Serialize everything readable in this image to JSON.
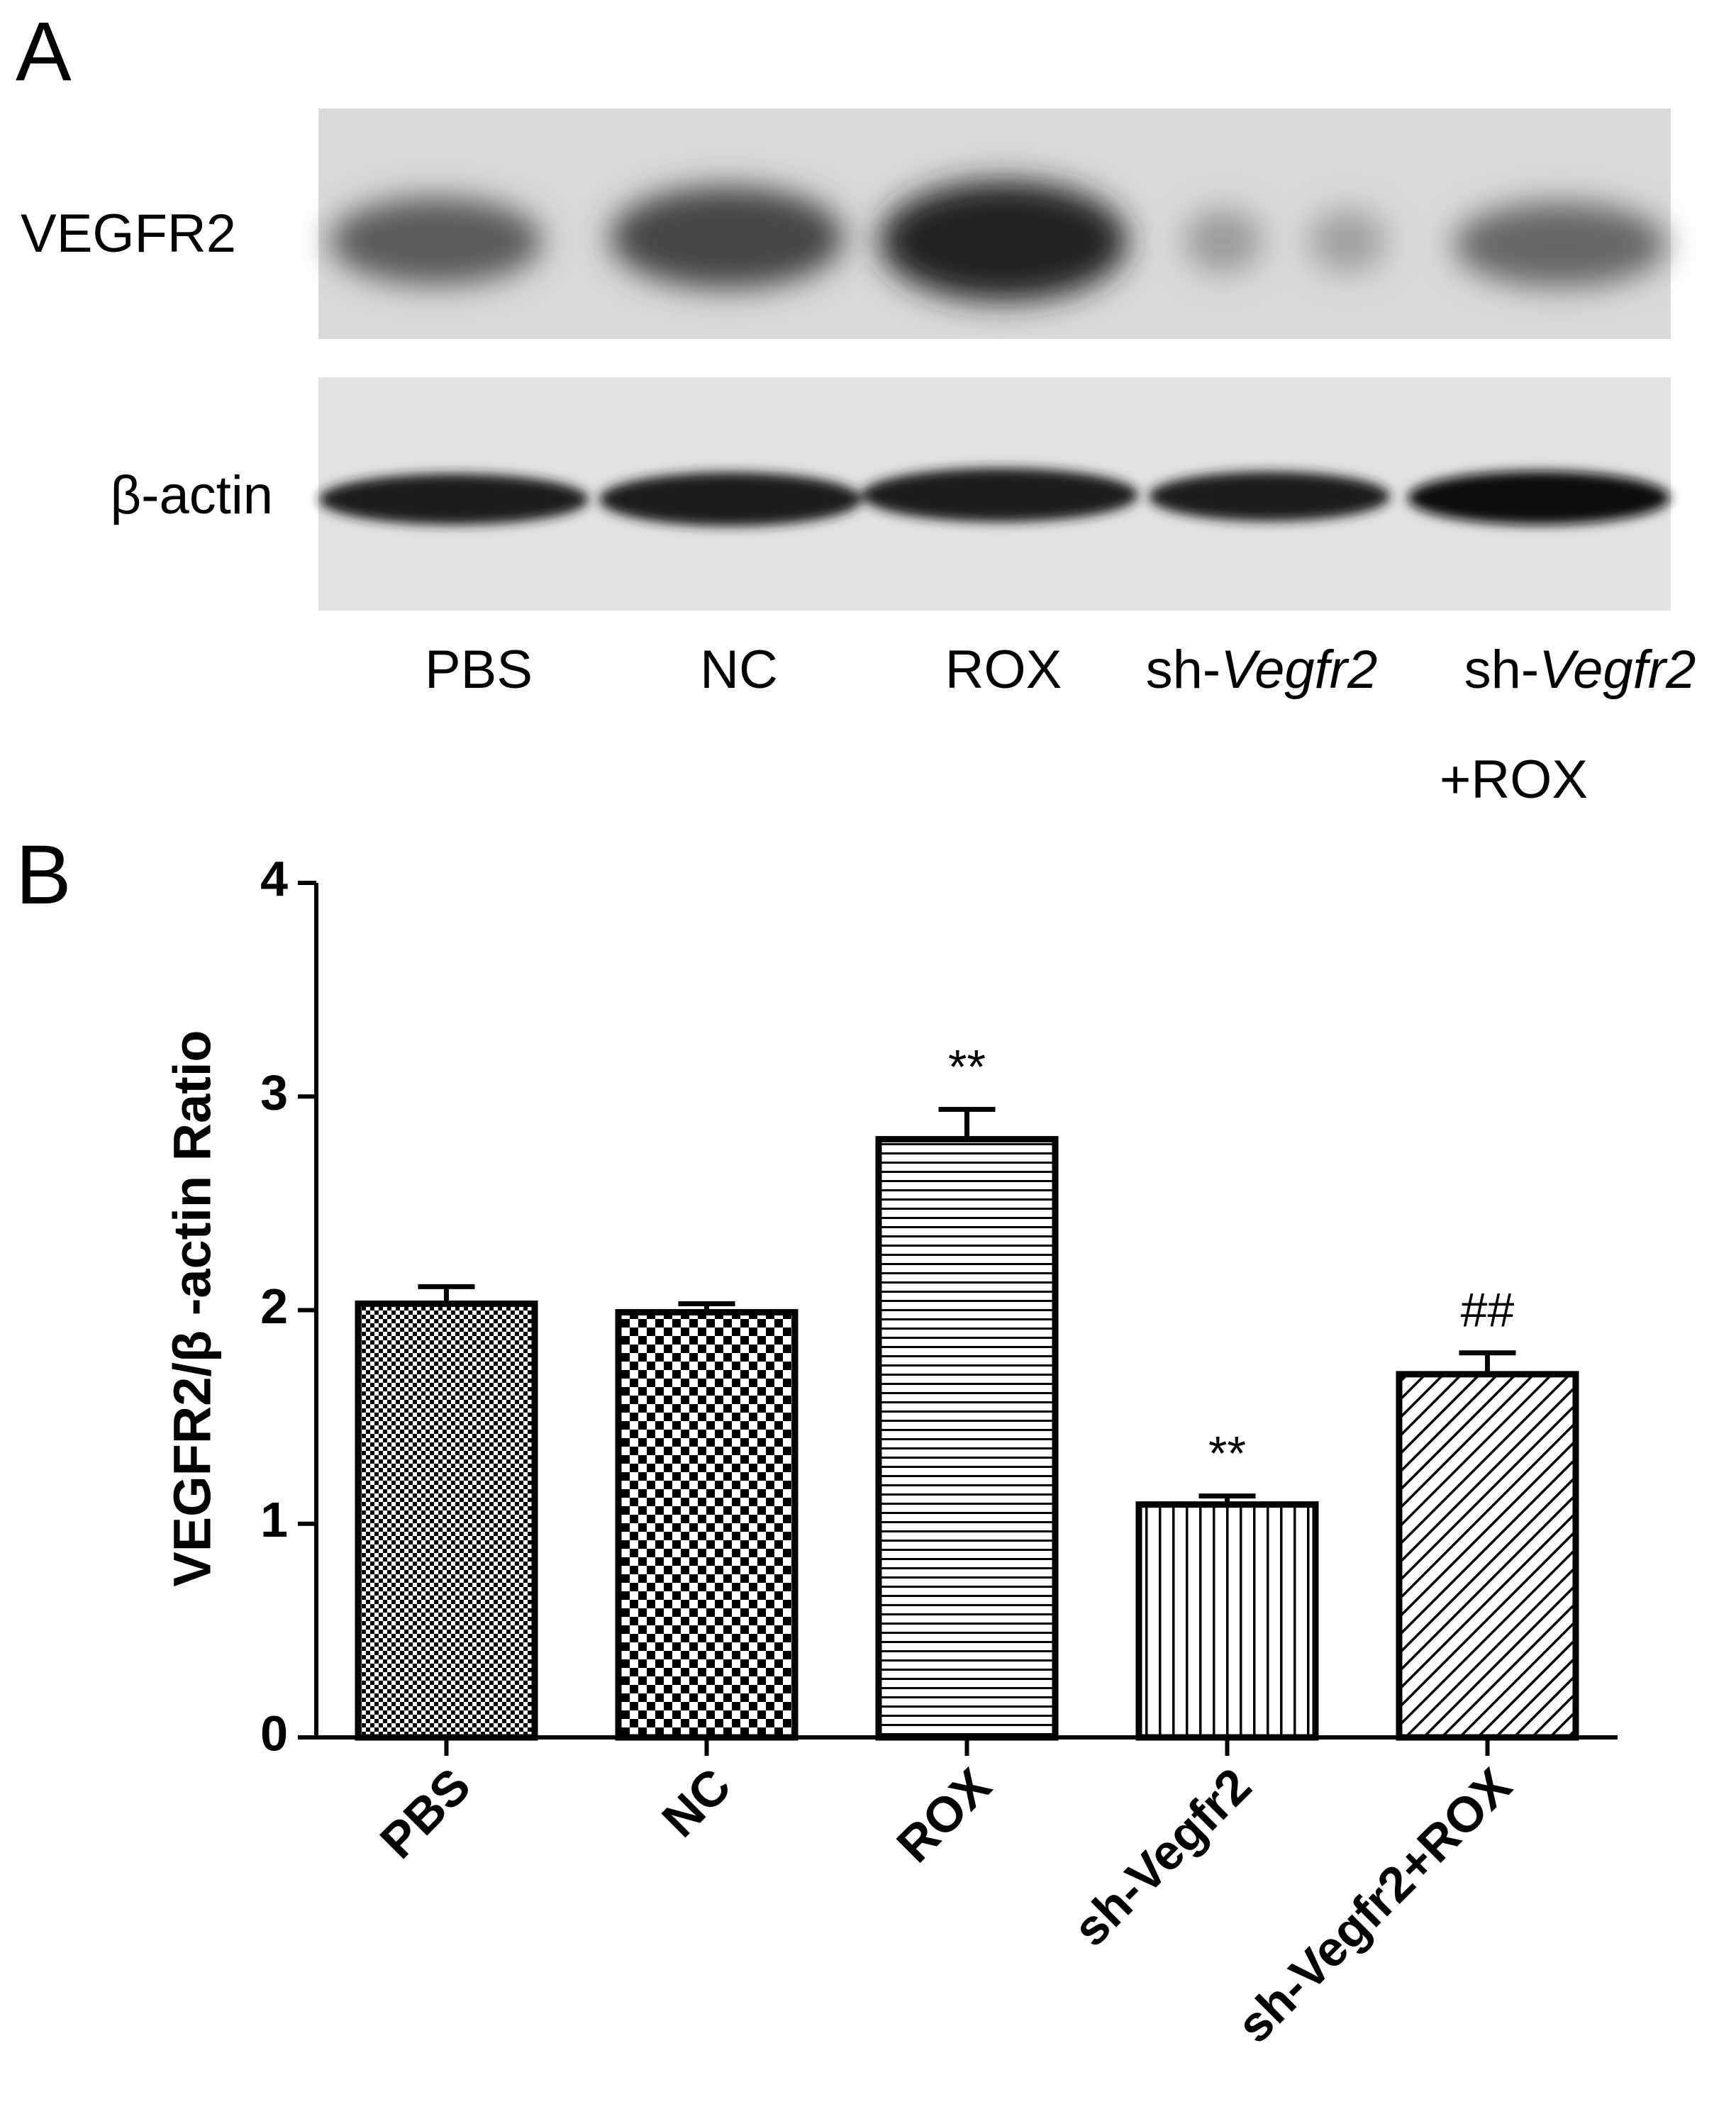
{
  "panel_a": {
    "label": "A",
    "rows": [
      "VEGFR2",
      "β-actin"
    ],
    "lanes": [
      {
        "label": "PBS"
      },
      {
        "label": "NC"
      },
      {
        "label": "ROX"
      },
      {
        "label": "sh-",
        "label_italic": "Vegfr2"
      },
      {
        "label": "sh-",
        "label_italic": "Vegfr2",
        "line2": "+ROX"
      }
    ]
  },
  "chart_data": {
    "type": "bar",
    "panel_label": "B",
    "y_label": "VEGFR2/β -actin Ratio",
    "categories": [
      "PBS",
      "NC",
      "ROX",
      "sh-Vegfr2",
      "sh-Vegfr2+ROX"
    ],
    "values": [
      2.03,
      1.99,
      2.8,
      1.09,
      1.7
    ],
    "errors": [
      0.08,
      0.04,
      0.14,
      0.04,
      0.1
    ],
    "patterns": [
      "checker-fine",
      "checker",
      "horizontal",
      "vertical",
      "diagonal"
    ],
    "color": "#000000",
    "annotations": [
      {
        "category": "ROX",
        "text": "**"
      },
      {
        "category": "sh-Vegfr2",
        "text": "**"
      },
      {
        "category": "sh-Vegfr2+ROX",
        "text": "##"
      }
    ],
    "ylim": [
      0,
      4
    ],
    "yticks": [
      0,
      1,
      2,
      3,
      4
    ],
    "grid": false
  }
}
